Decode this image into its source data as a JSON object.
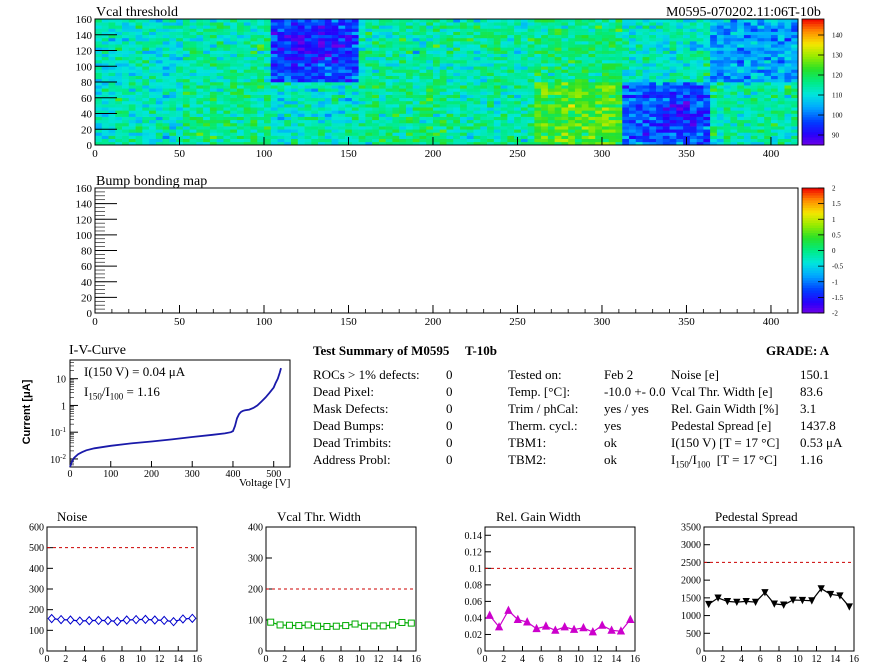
{
  "header": {
    "title": "Vcal threshold",
    "module_id": "M0595-070202.11:06T-10b"
  },
  "colors": {
    "axis": "#000000",
    "iv_curve": "#1a1aaa",
    "noise": "#0000cc",
    "vcal": "#00aa00",
    "gain": "#cc00cc",
    "pedestal": "#000000",
    "limit_line": "#cc0000"
  },
  "chart_data": [
    {
      "id": "vcal_map",
      "type": "heatmap",
      "title": "Vcal threshold",
      "xlim": [
        0,
        416
      ],
      "ylim": [
        0,
        160
      ],
      "x_ticks": [
        0,
        50,
        100,
        150,
        200,
        250,
        300,
        350,
        400
      ],
      "y_ticks": [
        0,
        20,
        40,
        60,
        80,
        100,
        120,
        140,
        160
      ],
      "color_scale": {
        "min": 85,
        "max": 148,
        "ticks": [
          90,
          100,
          110,
          120,
          130,
          140
        ]
      },
      "roc_means": {
        "top": [
          112,
          114,
          97,
          114,
          114,
          117,
          112,
          104
        ],
        "bottom": [
          112,
          116,
          112,
          116,
          114,
          124,
          100,
          114
        ]
      }
    },
    {
      "id": "bump_map",
      "type": "heatmap",
      "title": "Bump bonding map",
      "xlim": [
        0,
        416
      ],
      "ylim": [
        0,
        160
      ],
      "x_ticks": [
        0,
        50,
        100,
        150,
        200,
        250,
        300,
        350,
        400
      ],
      "y_ticks": [
        0,
        20,
        40,
        60,
        80,
        100,
        120,
        140,
        160
      ],
      "color_scale": {
        "min": -2,
        "max": 2,
        "ticks": [
          "2",
          "1.5",
          "1",
          "0.5",
          "0",
          "-0.5",
          "-1",
          "-1.5",
          "-2"
        ]
      }
    },
    {
      "id": "iv_curve",
      "type": "line",
      "title": "I-V-Curve",
      "xlabel": "Voltage [V]",
      "ylabel": "Current [μA]",
      "log_y": true,
      "xlim": [
        0,
        540
      ],
      "ylim": [
        0.005,
        50
      ],
      "x_ticks": [
        0,
        100,
        200,
        300,
        400,
        500
      ],
      "y_ticks": [
        {
          "v": 0.01,
          "label": "10",
          "exp": "-2"
        },
        {
          "v": 0.1,
          "label": "10",
          "exp": "-1"
        },
        {
          "v": 1,
          "label": "1",
          "exp": ""
        },
        {
          "v": 10,
          "label": "10",
          "exp": ""
        }
      ],
      "annotations": [
        "I(150 V) = 0.04 μA",
        "1.16"
      ],
      "points": [
        [
          0,
          0.005
        ],
        [
          5,
          0.008
        ],
        [
          10,
          0.011
        ],
        [
          20,
          0.015
        ],
        [
          30,
          0.018
        ],
        [
          40,
          0.021
        ],
        [
          60,
          0.025
        ],
        [
          100,
          0.031
        ],
        [
          150,
          0.038
        ],
        [
          200,
          0.045
        ],
        [
          250,
          0.054
        ],
        [
          300,
          0.066
        ],
        [
          350,
          0.08
        ],
        [
          380,
          0.09
        ],
        [
          395,
          0.1
        ],
        [
          400,
          0.11
        ],
        [
          405,
          0.17
        ],
        [
          410,
          0.33
        ],
        [
          415,
          0.48
        ],
        [
          420,
          0.58
        ],
        [
          425,
          0.63
        ],
        [
          430,
          0.66
        ],
        [
          440,
          0.7
        ],
        [
          450,
          0.8
        ],
        [
          460,
          1.0
        ],
        [
          470,
          1.4
        ],
        [
          480,
          2.0
        ],
        [
          490,
          3.0
        ],
        [
          500,
          4.7
        ],
        [
          505,
          7
        ],
        [
          510,
          10
        ],
        [
          515,
          17
        ],
        [
          518,
          25
        ]
      ]
    },
    {
      "id": "noise",
      "type": "line",
      "title": "Noise",
      "marker": "diamond",
      "color": "#0000cc",
      "xlim": [
        0,
        16
      ],
      "ylim": [
        0,
        600
      ],
      "x_ticks": [
        0,
        2,
        4,
        6,
        8,
        10,
        12,
        14,
        16
      ],
      "y_ticks": [
        0,
        100,
        200,
        300,
        400,
        500,
        600
      ],
      "limit": 500,
      "x": [
        0.5,
        1.5,
        2.5,
        3.5,
        4.5,
        5.5,
        6.5,
        7.5,
        8.5,
        9.5,
        10.5,
        11.5,
        12.5,
        13.5,
        14.5,
        15.5
      ],
      "values": [
        157,
        152,
        150,
        145,
        147,
        148,
        147,
        143,
        150,
        152,
        153,
        150,
        148,
        142,
        155,
        158
      ]
    },
    {
      "id": "vcal_width",
      "type": "line",
      "title": "Vcal Thr. Width",
      "marker": "square",
      "color": "#00aa00",
      "xlim": [
        0,
        16
      ],
      "ylim": [
        0,
        400
      ],
      "x_ticks": [
        0,
        2,
        4,
        6,
        8,
        10,
        12,
        14,
        16
      ],
      "y_ticks": [
        0,
        100,
        200,
        300,
        400
      ],
      "limit": 200,
      "x": [
        0.5,
        1.5,
        2.5,
        3.5,
        4.5,
        5.5,
        6.5,
        7.5,
        8.5,
        9.5,
        10.5,
        11.5,
        12.5,
        13.5,
        14.5,
        15.5
      ],
      "values": [
        93,
        84,
        83,
        82,
        84,
        80,
        79,
        80,
        82,
        87,
        80,
        81,
        81,
        84,
        92,
        90
      ]
    },
    {
      "id": "gain_width",
      "type": "line",
      "title": "Rel. Gain Width",
      "marker": "triangle",
      "color": "#cc00cc",
      "xlim": [
        0,
        16
      ],
      "ylim": [
        0,
        0.15
      ],
      "x_ticks": [
        0,
        2,
        4,
        6,
        8,
        10,
        12,
        14,
        16
      ],
      "y_ticks": [
        "0",
        "0.02",
        "0.04",
        "0.06",
        "0.08",
        "0.1",
        "0.12",
        "0.14"
      ],
      "limit": 0.1,
      "x": [
        0.5,
        1.5,
        2.5,
        3.5,
        4.5,
        5.5,
        6.5,
        7.5,
        8.5,
        9.5,
        10.5,
        11.5,
        12.5,
        13.5,
        14.5,
        15.5
      ],
      "values": [
        0.043,
        0.029,
        0.049,
        0.038,
        0.035,
        0.027,
        0.03,
        0.025,
        0.029,
        0.026,
        0.028,
        0.023,
        0.031,
        0.025,
        0.024,
        0.038
      ]
    },
    {
      "id": "pedestal",
      "type": "line",
      "title": "Pedestal Spread",
      "marker": "triangle-down",
      "color": "#000000",
      "xlim": [
        0,
        16
      ],
      "ylim": [
        0,
        3500
      ],
      "x_ticks": [
        0,
        2,
        4,
        6,
        8,
        10,
        12,
        14,
        16
      ],
      "y_ticks": [
        0,
        500,
        1000,
        1500,
        2000,
        2500,
        3000,
        3500
      ],
      "limit": 2500,
      "x": [
        0.5,
        1.5,
        2.5,
        3.5,
        4.5,
        5.5,
        6.5,
        7.5,
        8.5,
        9.5,
        10.5,
        11.5,
        12.5,
        13.5,
        14.5,
        15.5
      ],
      "values": [
        1320,
        1500,
        1400,
        1380,
        1400,
        1380,
        1650,
        1330,
        1300,
        1440,
        1430,
        1420,
        1760,
        1600,
        1560,
        1250
      ]
    }
  ],
  "iv_labels": {
    "title": "I-V-Curve",
    "i150": "I(150 V) = 0.04 μA",
    "ratio_i": "I",
    "ratio_sub1": "150",
    "ratio_sep": "/I",
    "ratio_sub2": "100",
    "ratio_val": "=  1.16",
    "ylabel": "Current [μA]",
    "xlabel": "Voltage [V]"
  },
  "summary": {
    "title": "Test Summary of M0595",
    "temp_code": "T-10b",
    "grade": "GRADE:  A",
    "left": [
      {
        "label": "ROCs > 1% defects:",
        "value": "0"
      },
      {
        "label": "Dead Pixel:",
        "value": "0"
      },
      {
        "label": "Mask Defects:",
        "value": "0"
      },
      {
        "label": "Dead Bumps:",
        "value": "0"
      },
      {
        "label": "Dead Trimbits:",
        "value": "0"
      },
      {
        "label": "Address Probl:",
        "value": "0"
      }
    ],
    "middle": [
      {
        "label": "Tested on:",
        "value": "Feb 2"
      },
      {
        "label": "Temp. [°C]:",
        "value": "-10.0 +- 0.0"
      },
      {
        "label": "Trim / phCal:",
        "value": "yes / yes"
      },
      {
        "label": "Therm. cycl.:",
        "value": "yes"
      },
      {
        "label": "TBM1:",
        "value": "ok"
      },
      {
        "label": "TBM2:",
        "value": "ok"
      }
    ],
    "right": [
      {
        "label": "Noise [e]",
        "value": "150.1"
      },
      {
        "label": "Vcal Thr. Width [e]",
        "value": "83.6"
      },
      {
        "label": "Rel. Gain Width [%]",
        "value": "3.1"
      },
      {
        "label": "Pedestal Spread [e]",
        "value": "1437.8"
      },
      {
        "label": "I(150 V) [T = 17 °C]",
        "value": "0.53 μA"
      },
      {
        "label": "I",
        "sub1": "150",
        "sep": "/I",
        "sub2": "100",
        "tail": "  [T = 17 °C]",
        "value": "1.16"
      }
    ]
  }
}
